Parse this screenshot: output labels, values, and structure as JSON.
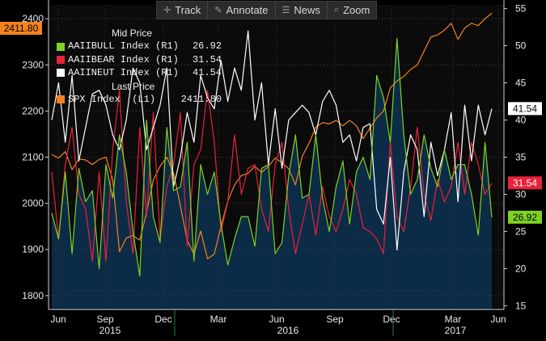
{
  "toolbar": {
    "buttons": [
      {
        "label": "Track",
        "icon": "crosshair-icon"
      },
      {
        "label": "Annotate",
        "icon": "pencil-icon"
      },
      {
        "label": "News",
        "icon": "news-icon"
      },
      {
        "label": "Zoom",
        "icon": "magnifier-icon"
      }
    ]
  },
  "legend": {
    "mid_price_header": "Mid Price",
    "last_price_header": "Last Price",
    "rows": [
      {
        "name": "AAIIBULL Index",
        "axis": "(R1)",
        "value": "26.92",
        "color": "#7ed321"
      },
      {
        "name": "AAIIBEAR Index",
        "axis": "(R1)",
        "value": "31.54",
        "color": "#e8223a"
      },
      {
        "name": "AAIINEUT Index",
        "axis": "(R1)",
        "value": "41.54",
        "color": "#ffffff"
      },
      {
        "name": "SPX Index",
        "axis": "(L1)",
        "value": "2411.80",
        "color": "#f5831f"
      }
    ]
  },
  "chart_data": {
    "type": "line",
    "x_ticks": [
      "Jun",
      "Sep",
      "Dec",
      "Mar",
      "Jun",
      "Sep",
      "Dec",
      "Mar",
      "Jun"
    ],
    "year_labels": [
      "2015",
      "2016",
      "2017"
    ],
    "left_axis": {
      "ticks": [
        1800,
        1900,
        2000,
        2100,
        2200,
        2300,
        2400
      ],
      "range": [
        1770,
        2430
      ]
    },
    "right_axis": {
      "ticks": [
        15,
        20,
        25,
        30,
        35,
        40,
        45,
        50,
        55
      ],
      "range": [
        14.5,
        55.5
      ]
    },
    "end_labels": {
      "left": "2411.80",
      "bull": "26.92",
      "bear": "31.54",
      "neut": "41.54"
    },
    "colors": {
      "bull": "#7ed321",
      "bear": "#e8223a",
      "neut": "#ffffff",
      "spx": "#f5831f",
      "area": "#0d2d4a"
    },
    "series": [
      {
        "name": "AAIIBULL Index",
        "axis": "R1",
        "values": [
          27.5,
          24,
          33,
          22,
          33.5,
          29,
          30.5,
          20,
          34,
          29.5,
          38,
          33,
          25,
          19,
          40,
          27,
          23.5,
          39,
          30.5,
          31,
          37,
          21,
          34,
          30,
          33,
          26,
          20.5,
          24,
          27,
          27,
          23,
          33.5,
          34,
          22,
          23.5,
          32.5,
          38,
          29.5,
          30,
          38,
          29.5,
          25,
          31,
          34.5,
          26,
          33,
          35,
          32,
          46,
          43,
          37,
          51,
          38,
          30,
          32,
          38,
          33.5,
          31,
          36,
          32,
          34,
          34,
          30,
          24.5,
          37,
          26.9
        ]
      },
      {
        "name": "AAIIBEAR Index",
        "axis": "R1",
        "values": [
          33,
          24,
          34,
          39,
          30,
          28,
          21,
          33,
          21,
          36,
          44,
          29,
          22,
          39,
          27,
          41,
          24,
          31,
          34,
          41,
          23,
          34,
          36,
          44,
          37,
          25,
          29,
          38,
          30,
          33.5,
          34,
          28,
          25,
          34,
          37,
          28,
          22,
          26,
          30,
          24.5,
          31,
          27,
          25,
          28,
          32,
          30,
          25.5,
          25,
          24,
          22,
          37,
          27,
          25,
          31,
          39,
          30,
          26.5,
          32,
          29,
          31,
          37,
          30,
          37,
          34,
          30,
          31.5
        ]
      },
      {
        "name": "AAIINEUT Index",
        "axis": "R1",
        "values": [
          40,
          45,
          37,
          46,
          34.5,
          39,
          43.5,
          44,
          42,
          38,
          36,
          40,
          47,
          45,
          36,
          39,
          42,
          47,
          31,
          35,
          41,
          37,
          46,
          43,
          41.5,
          48,
          42.5,
          47,
          44,
          52,
          40,
          45,
          34,
          41.5,
          33.5,
          40,
          41,
          42,
          41,
          38,
          42.5,
          44,
          42,
          37,
          38,
          34.5,
          39,
          39.5,
          28,
          26,
          35,
          22.5,
          33,
          38,
          36,
          27,
          37,
          32.5,
          36,
          41,
          29,
          42,
          34.5,
          42,
          38,
          41.5
        ]
      },
      {
        "name": "SPX Index",
        "axis": "L1",
        "values": [
          2106,
          2098,
          2112,
          2073,
          2096,
          2094,
          2084,
          2095,
          2100,
          2052,
          1895,
          1925,
          1930,
          1920,
          1980,
          2050,
          2080,
          2100,
          2065,
          1995,
          1920,
          1890,
          1940,
          1880,
          1890,
          1950,
          2005,
          2040,
          2060,
          2065,
          2080,
          2067,
          2080,
          2098,
          2088,
          2075,
          2040,
          2102,
          2130,
          2165,
          2175,
          2172,
          2180,
          2168,
          2180,
          2168,
          2140,
          2163,
          2185,
          2200,
          2250,
          2265,
          2275,
          2290,
          2300,
          2330,
          2360,
          2365,
          2375,
          2390,
          2355,
          2380,
          2390,
          2385,
          2400,
          2411.8
        ]
      }
    ]
  }
}
